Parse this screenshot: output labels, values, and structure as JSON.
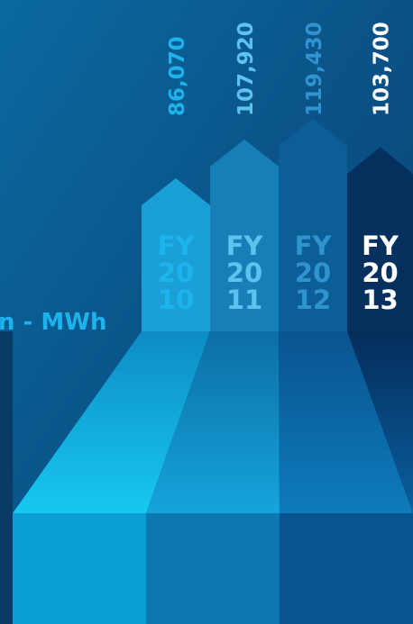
{
  "chart_data": {
    "type": "arrow-bar",
    "y_label": "n - MWh",
    "categories": [
      [
        "FY",
        "20",
        "10"
      ],
      [
        "FY",
        "20",
        "11"
      ],
      [
        "FY",
        "20",
        "12"
      ],
      [
        "FY",
        "20",
        "13"
      ]
    ],
    "values": [
      86070,
      107920,
      119430,
      103700
    ],
    "value_labels": [
      "86,070",
      "107,920",
      "119,430",
      "103,700"
    ],
    "colors": [
      "#1a9fd6",
      "#177fb8",
      "#0c5e97",
      "#05305e"
    ],
    "label_colors": [
      "#1db3ec",
      "#5ec2ee",
      "#2f93cf",
      "#ffffff"
    ],
    "ylim": [
      0,
      120000
    ]
  }
}
